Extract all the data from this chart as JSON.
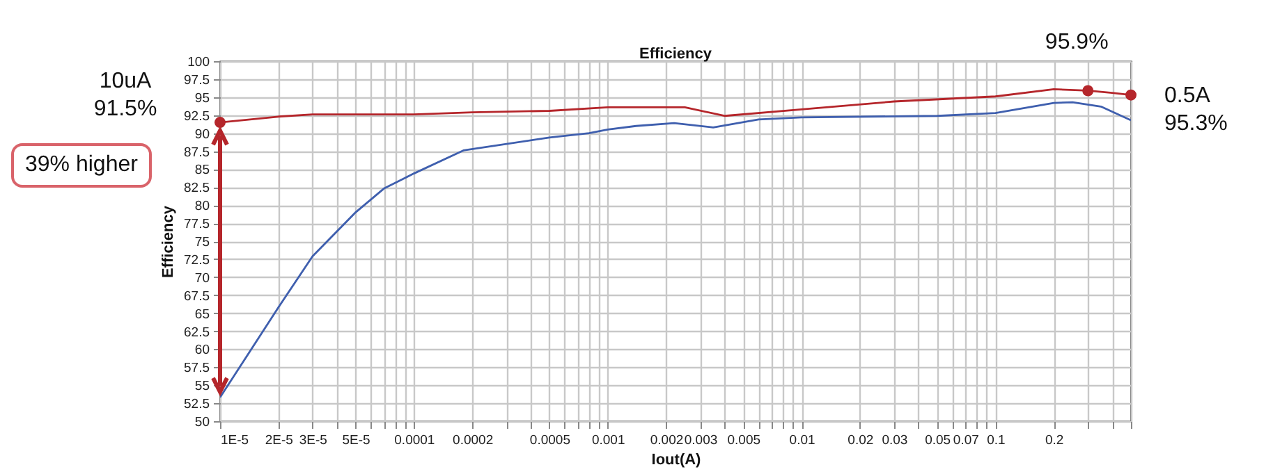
{
  "chart_data": {
    "type": "line",
    "title": "Efficiency",
    "xlabel": "Iout(A)",
    "ylabel": "Efficiency",
    "log": "x",
    "grid": true,
    "legend": false,
    "marker": "none",
    "line_style": "solid",
    "xlim": [
      1e-05,
      0.5
    ],
    "ylim": [
      50,
      100
    ],
    "xticks": [
      {
        "value": 1e-05,
        "label": "1E-5"
      },
      {
        "value": 2e-05,
        "label": "2E-5"
      },
      {
        "value": 3e-05,
        "label": "3E-5"
      },
      {
        "value": 4e-05,
        "label": null
      },
      {
        "value": 5e-05,
        "label": "5E-5"
      },
      {
        "value": 6e-05,
        "label": null
      },
      {
        "value": 7e-05,
        "label": null
      },
      {
        "value": 8e-05,
        "label": null
      },
      {
        "value": 9e-05,
        "label": null
      },
      0.0001,
      0.0002,
      {
        "value": 0.0003,
        "label": null
      },
      {
        "value": 0.0004,
        "label": null
      },
      0.0005,
      {
        "value": 0.0006,
        "label": null
      },
      {
        "value": 0.0007,
        "label": null
      },
      {
        "value": 0.0008,
        "label": null
      },
      {
        "value": 0.0009,
        "label": null
      },
      0.001,
      0.002,
      0.003,
      {
        "value": 0.004,
        "label": null
      },
      0.005,
      {
        "value": 0.006,
        "label": null
      },
      {
        "value": 0.007,
        "label": null
      },
      {
        "value": 0.008,
        "label": null
      },
      {
        "value": 0.009,
        "label": null
      },
      0.01,
      0.02,
      0.03,
      {
        "value": 0.04,
        "label": null
      },
      0.05,
      {
        "value": 0.06,
        "label": null
      },
      0.07,
      {
        "value": 0.08,
        "label": null
      },
      {
        "value": 0.09,
        "label": null
      },
      0.1,
      0.2,
      {
        "value": 0.3,
        "label": null
      },
      {
        "value": 0.4,
        "label": null
      },
      {
        "value": 0.5,
        "label": null
      }
    ],
    "yticks": [
      50,
      52.5,
      55,
      57.5,
      60,
      62.5,
      65,
      67.5,
      70,
      72.5,
      75,
      77.5,
      80,
      82.5,
      85,
      87.5,
      90,
      92.5,
      95,
      97.5,
      100
    ],
    "series": [
      {
        "color": "#b5262b",
        "x": [
          1e-05,
          2e-05,
          3e-05,
          0.0001,
          0.0002,
          0.0005,
          0.001,
          0.002,
          0.0025,
          0.004,
          0.01,
          0.03,
          0.1,
          0.2,
          0.3,
          0.4,
          0.5
        ],
        "values": [
          91.5,
          92.3,
          92.6,
          92.6,
          92.9,
          93.1,
          93.6,
          93.6,
          93.6,
          92.4,
          93.3,
          94.4,
          95.1,
          96.1,
          95.9,
          95.6,
          95.3
        ]
      },
      {
        "color": "#3f5fae",
        "x": [
          1e-05,
          2e-05,
          3e-05,
          5e-05,
          7e-05,
          0.0001,
          0.00018,
          0.0005,
          0.0008,
          0.001,
          0.0014,
          0.0022,
          0.0035,
          0.006,
          0.01,
          0.05,
          0.1,
          0.2,
          0.25,
          0.35,
          0.5
        ],
        "values": [
          53.3,
          65.8,
          72.9,
          79.0,
          82.3,
          84.4,
          87.6,
          89.4,
          90.0,
          90.5,
          91.0,
          91.4,
          90.8,
          91.9,
          92.2,
          92.4,
          92.8,
          94.2,
          94.3,
          93.7,
          91.8
        ]
      }
    ],
    "annotations": [
      {
        "text": "10uA\n91.5%",
        "x": 1e-05,
        "y": 91.5
      },
      {
        "text": "95.9%",
        "x": 0.3,
        "y": 95.9
      },
      {
        "text": "0.5A\n95.3%",
        "x": 0.5,
        "y": 95.3
      },
      "39% higher"
    ]
  }
}
